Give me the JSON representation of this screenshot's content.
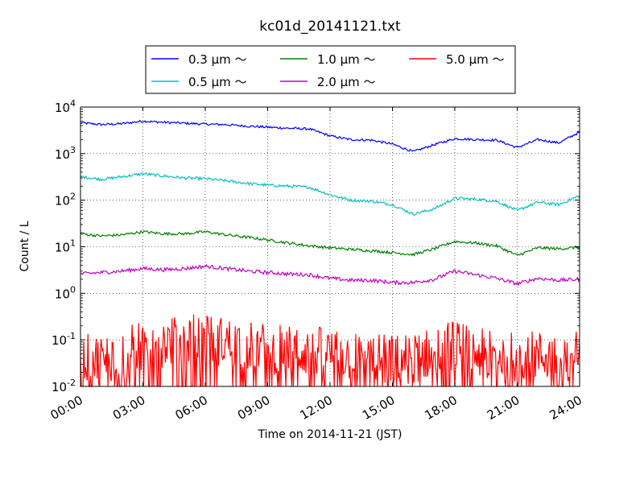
{
  "chart_data": {
    "type": "line",
    "title": "kc01d_20141121.txt",
    "xlabel": "Time on 2014-11-21 (JST)",
    "ylabel": "Count / L",
    "yscale": "log",
    "ylim": [
      0.01,
      10000
    ],
    "xlim": [
      "00:00",
      "24:00"
    ],
    "x_ticks": [
      "00:00",
      "03:00",
      "06:00",
      "09:00",
      "12:00",
      "15:00",
      "18:00",
      "21:00",
      "24:00"
    ],
    "y_ticks": [
      {
        "value": 0.01,
        "base": "10",
        "exp": "-2"
      },
      {
        "value": 0.1,
        "base": "10",
        "exp": "-1"
      },
      {
        "value": 1,
        "base": "10",
        "exp": "0"
      },
      {
        "value": 10,
        "base": "10",
        "exp": "1"
      },
      {
        "value": 100,
        "base": "10",
        "exp": "2"
      },
      {
        "value": 1000,
        "base": "10",
        "exp": "3"
      },
      {
        "value": 10000,
        "base": "10",
        "exp": "4"
      }
    ],
    "grid": true,
    "legend_position": "top-center",
    "x_hours": [
      0,
      1,
      2,
      3,
      4,
      5,
      6,
      7,
      8,
      9,
      10,
      11,
      12,
      13,
      14,
      15,
      16,
      17,
      18,
      19,
      20,
      21,
      22,
      23,
      24
    ],
    "series": [
      {
        "name": "0.3 μm ～",
        "color": "#0000ff",
        "noise": 0.025,
        "values": [
          4600,
          4200,
          4400,
          5000,
          4700,
          4500,
          4300,
          4200,
          3900,
          3700,
          3500,
          3400,
          2400,
          2000,
          1950,
          1600,
          1100,
          1550,
          2100,
          2000,
          1950,
          1350,
          2000,
          1700,
          2900
        ]
      },
      {
        "name": "0.5 μm ～",
        "color": "#00bfbf",
        "noise": 0.03,
        "values": [
          320,
          280,
          320,
          370,
          330,
          300,
          290,
          260,
          230,
          210,
          200,
          190,
          130,
          100,
          95,
          80,
          50,
          65,
          110,
          105,
          95,
          60,
          90,
          80,
          125
        ]
      },
      {
        "name": "1.0 μm ～",
        "color": "#008000",
        "noise": 0.03,
        "values": [
          19,
          17,
          18,
          21,
          19,
          19,
          21,
          18,
          16,
          14,
          12,
          10.5,
          9.5,
          8.8,
          8.2,
          7.5,
          6.8,
          9,
          13,
          12,
          10.5,
          6.5,
          9.5,
          9,
          9.8
        ]
      },
      {
        "name": "2.0 μm ～",
        "color": "#bf00bf",
        "noise": 0.04,
        "values": [
          2.6,
          2.8,
          3.0,
          3.4,
          3.2,
          3.4,
          3.8,
          3.4,
          3.0,
          2.8,
          2.6,
          2.5,
          2.1,
          1.9,
          1.9,
          1.7,
          1.7,
          2.0,
          3.0,
          2.5,
          2.1,
          1.6,
          2.1,
          1.9,
          2.0
        ]
      },
      {
        "name": "5.0 μm ～",
        "color": "#ff0000",
        "noise": 0.32,
        "noisy": true,
        "values": [
          0.03,
          0.03,
          0.04,
          0.06,
          0.07,
          0.08,
          0.08,
          0.07,
          0.06,
          0.05,
          0.045,
          0.045,
          0.04,
          0.035,
          0.03,
          0.03,
          0.03,
          0.045,
          0.06,
          0.04,
          0.035,
          0.035,
          0.035,
          0.035,
          0.035
        ]
      }
    ]
  }
}
